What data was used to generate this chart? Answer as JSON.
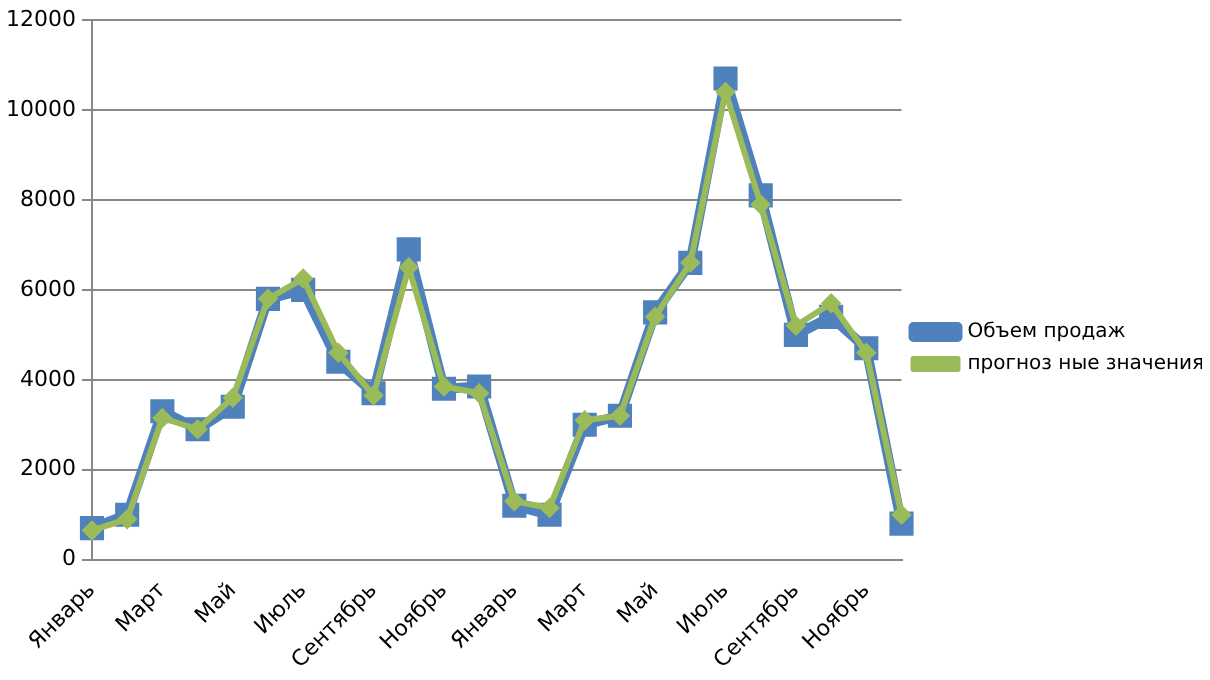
{
  "chart_data": {
    "type": "line",
    "categories": [
      "Январь",
      null,
      "Март",
      null,
      "Май",
      null,
      "Июль",
      null,
      "Сентябрь",
      null,
      "Ноябрь",
      null,
      "Январь",
      null,
      "Март",
      null,
      "Май",
      null,
      "Июль",
      null,
      "Сентябрь",
      null,
      "Ноябрь",
      null
    ],
    "series": [
      {
        "name": "Объем продаж",
        "color": "#4f81bd",
        "marker": "square",
        "values": [
          700,
          1000,
          3300,
          2900,
          3400,
          5800,
          6000,
          4400,
          3700,
          6900,
          3800,
          3850,
          1200,
          1000,
          3000,
          3200,
          5500,
          6600,
          10700,
          8100,
          5000,
          5400,
          4700,
          800
        ]
      },
      {
        "name": "прогноз ные значения",
        "color": "#9bbb59",
        "marker": "diamond",
        "values": [
          650,
          900,
          3150,
          2900,
          3600,
          5800,
          6250,
          4600,
          3650,
          6500,
          3850,
          3700,
          1300,
          1150,
          3100,
          3200,
          5400,
          6600,
          10400,
          7900,
          5200,
          5700,
          4600,
          1000
        ]
      }
    ],
    "ylim": [
      0,
      12000
    ],
    "yticks": [
      0,
      2000,
      4000,
      6000,
      8000,
      10000,
      12000
    ],
    "grid": "y",
    "legend": "right"
  }
}
